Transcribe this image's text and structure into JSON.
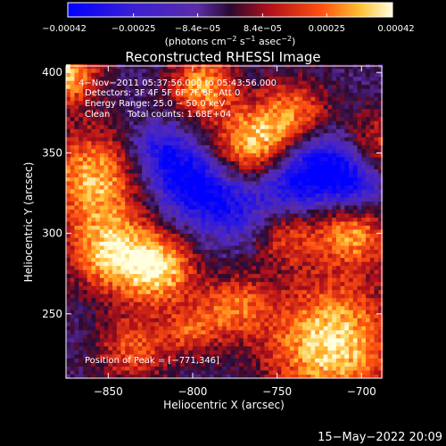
{
  "chart_data": {
    "type": "heatmap",
    "title": "Reconstructed RHESSI Image",
    "xlabel": "Heliocentric X (arcsec)",
    "ylabel": "Heliocentric Y (arcsec)",
    "xlim": [
      -875,
      -688
    ],
    "ylim": [
      210,
      404
    ],
    "x_ticks": [
      -850,
      -800,
      -750,
      -700
    ],
    "y_ticks": [
      250,
      300,
      350,
      400
    ],
    "x_tick_labels": [
      "−850",
      "−800",
      "−750",
      "−700"
    ],
    "y_tick_labels": [
      "250",
      "300",
      "350",
      "400"
    ],
    "colorbar": {
      "range": [
        -0.00042,
        0.00042
      ],
      "tick_values": [
        -0.00042,
        -0.00025,
        -8.4e-05,
        8.4e-05,
        0.00025,
        0.00042
      ],
      "tick_labels": [
        "−0.00042",
        "−0.00025",
        "−8.4e−05",
        "8.4e−05",
        "0.00025",
        "0.00042"
      ],
      "label_prefix": "(photons cm",
      "label_exp1": "−2",
      "label_mid1": " s",
      "label_exp2": "−1",
      "label_mid2": " asec",
      "label_exp3": "−2",
      "label_suffix": ")"
    },
    "annotations": {
      "time_range": "4−Nov−2011 05:37:56.000 to 05:43:56.000",
      "detectors": "Detectors: 3F 4F 5F 6F 7F 8F, Att 0",
      "energy_range": "Energy Range: 25.0 − 50.0 keV",
      "method": "Clean",
      "total_counts": "Total counts: 1.68E+04",
      "peak": "Position of Peak = [−771,346]"
    },
    "hotspots": [
      {
        "x": -762,
        "y": 355,
        "level": 1.0,
        "radius": 18
      },
      {
        "x": -795,
        "y": 392,
        "level": 0.8,
        "radius": 14
      },
      {
        "x": -718,
        "y": 232,
        "level": 1.0,
        "radius": 28
      },
      {
        "x": -875,
        "y": 400,
        "level": 0.9,
        "radius": 14
      },
      {
        "x": -858,
        "y": 335,
        "level": 0.85,
        "radius": 22
      },
      {
        "x": -850,
        "y": 288,
        "level": 0.8,
        "radius": 18
      },
      {
        "x": -820,
        "y": 278,
        "level": 0.9,
        "radius": 16
      },
      {
        "x": -705,
        "y": 302,
        "level": 0.8,
        "radius": 16
      },
      {
        "x": -690,
        "y": 350,
        "level": 0.6,
        "radius": 18
      },
      {
        "x": -775,
        "y": 255,
        "level": 0.6,
        "radius": 14
      },
      {
        "x": -745,
        "y": 300,
        "level": 0.55,
        "radius": 14
      },
      {
        "x": -835,
        "y": 228,
        "level": 0.6,
        "radius": 16
      },
      {
        "x": -800,
        "y": 240,
        "level": 0.5,
        "radius": 12
      },
      {
        "x": -738,
        "y": 378,
        "level": 0.55,
        "radius": 14
      }
    ],
    "coldspots": [
      {
        "x": -800,
        "y": 330,
        "level": -0.75,
        "radius": 16
      },
      {
        "x": -742,
        "y": 332,
        "level": -0.8,
        "radius": 16
      },
      {
        "x": -702,
        "y": 330,
        "level": -0.85,
        "radius": 14
      },
      {
        "x": -820,
        "y": 350,
        "level": -0.6,
        "radius": 14
      },
      {
        "x": -775,
        "y": 315,
        "level": -0.5,
        "radius": 16
      },
      {
        "x": -720,
        "y": 345,
        "level": -0.6,
        "radius": 14
      }
    ]
  },
  "footer": {
    "timestamp": "15−May−2022 20:09"
  }
}
